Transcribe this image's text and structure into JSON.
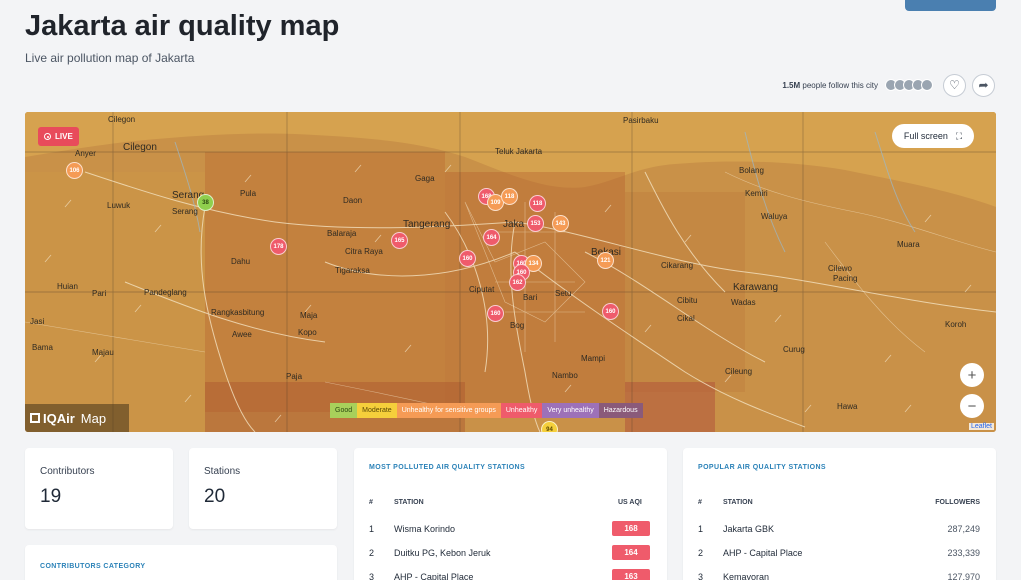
{
  "header": {
    "title": "Jakarta air quality map",
    "subtitle": "Live air pollution map of Jakarta"
  },
  "follow": {
    "count": "1.5M",
    "text": "people follow this city"
  },
  "map": {
    "live_label": "LIVE",
    "fullscreen_label": "Full screen",
    "zoom_in": "+",
    "zoom_out": "−",
    "attribution": "Leaflet",
    "brand_name": "IQAir",
    "brand_suffix": "Map",
    "labels": {
      "cilegon": "Cilegon",
      "anyer": "Anyer",
      "luwuk": "Luwuk",
      "serang": "Serang",
      "serang2": "Serang",
      "pula": "Pula",
      "gaga": "Gaga",
      "tangerang": "Tangerang",
      "balaraja": "Balaraja",
      "citraraya": "Citra Raya",
      "tigaraksa": "Tigaraksa",
      "jakarta": "Jaka",
      "bekasi": "Bekasi",
      "cikarang": "Cikarang",
      "karawang": "Karawang",
      "bolang": "Bolang",
      "kemiri": "Kemiri",
      "waluya": "Waluya",
      "muara": "Muara",
      "cilewo": "Cilewo",
      "pacing": "Pacing",
      "cibitung": "Cibitu",
      "wadas": "Wadas",
      "curug": "Curug",
      "ciputat": "Ciputat",
      "setu": "Setu",
      "bari": "Bari",
      "bogor": "Bog",
      "nambo": "Nambo",
      "mampi": "Mampi",
      "rangkasbitung": "Rangkasbitung",
      "pandeglang": "Pandeglang",
      "dahu": "Dahu",
      "pari": "Pari",
      "huian": "Huian",
      "jasinga": "Jasi",
      "maja": "Maja",
      "kopo": "Kopo",
      "bama": "Bama",
      "majau": "Majau",
      "awee": "Awee",
      "paja": "Paja",
      "pasirbaku": "Pasirbaku",
      "teluk": "Teluk Jakarta",
      "cileungsi": "Cileung",
      "hawa": "Hawa",
      "cikal": "Cikal",
      "daon": "Daon",
      "koroh": "Koroh"
    },
    "markers": [
      {
        "value": "106",
        "level": "sens"
      },
      {
        "value": "38",
        "level": "good"
      },
      {
        "value": "178",
        "level": "unh"
      },
      {
        "value": "165",
        "level": "unh"
      },
      {
        "value": "168",
        "level": "unh"
      },
      {
        "value": "109",
        "level": "sens"
      },
      {
        "value": "118",
        "level": "sens"
      },
      {
        "value": "118",
        "level": "unh"
      },
      {
        "value": "153",
        "level": "unh"
      },
      {
        "value": "143",
        "level": "sens"
      },
      {
        "value": "164",
        "level": "unh"
      },
      {
        "value": "160",
        "level": "unh"
      },
      {
        "value": "160",
        "level": "unh"
      },
      {
        "value": "134",
        "level": "sens"
      },
      {
        "value": "160",
        "level": "unh"
      },
      {
        "value": "162",
        "level": "unh"
      },
      {
        "value": "121",
        "level": "sens"
      },
      {
        "value": "160",
        "level": "unh"
      },
      {
        "value": "160",
        "level": "unh"
      },
      {
        "value": "94",
        "level": "mod"
      }
    ],
    "legend": [
      {
        "label": "Good",
        "color": "#a8d05b"
      },
      {
        "label": "Moderate",
        "color": "#f5cf3b"
      },
      {
        "label": "Unhealthy for sensitive groups",
        "color": "#f59b55"
      },
      {
        "label": "Unhealthy",
        "color": "#ef5b6b"
      },
      {
        "label": "Very unhealthy",
        "color": "#9d71b8"
      },
      {
        "label": "Hazardous",
        "color": "#8a5a7a"
      }
    ]
  },
  "stats": {
    "contributors_label": "Contributors",
    "contributors_value": "19",
    "stations_label": "Stations",
    "stations_value": "20",
    "category_heading": "CONTRIBUTORS CATEGORY"
  },
  "polluted": {
    "heading": "MOST POLLUTED AIR QUALITY STATIONS",
    "col_num": "#",
    "col_station": "STATION",
    "col_aqi": "US AQI",
    "rows": [
      {
        "rank": "1",
        "station": "Wisma Korindo",
        "aqi": "168"
      },
      {
        "rank": "2",
        "station": "Duitku PG, Kebon Jeruk",
        "aqi": "164"
      },
      {
        "rank": "3",
        "station": "AHP - Capital Place",
        "aqi": "163"
      }
    ]
  },
  "popular": {
    "heading": "POPULAR AIR QUALITY STATIONS",
    "col_num": "#",
    "col_station": "STATION",
    "col_followers": "FOLLOWERS",
    "rows": [
      {
        "rank": "1",
        "station": "Jakarta GBK",
        "followers": "287,249"
      },
      {
        "rank": "2",
        "station": "AHP - Capital Place",
        "followers": "233,339"
      },
      {
        "rank": "3",
        "station": "Kemayoran",
        "followers": "127,970"
      }
    ]
  }
}
